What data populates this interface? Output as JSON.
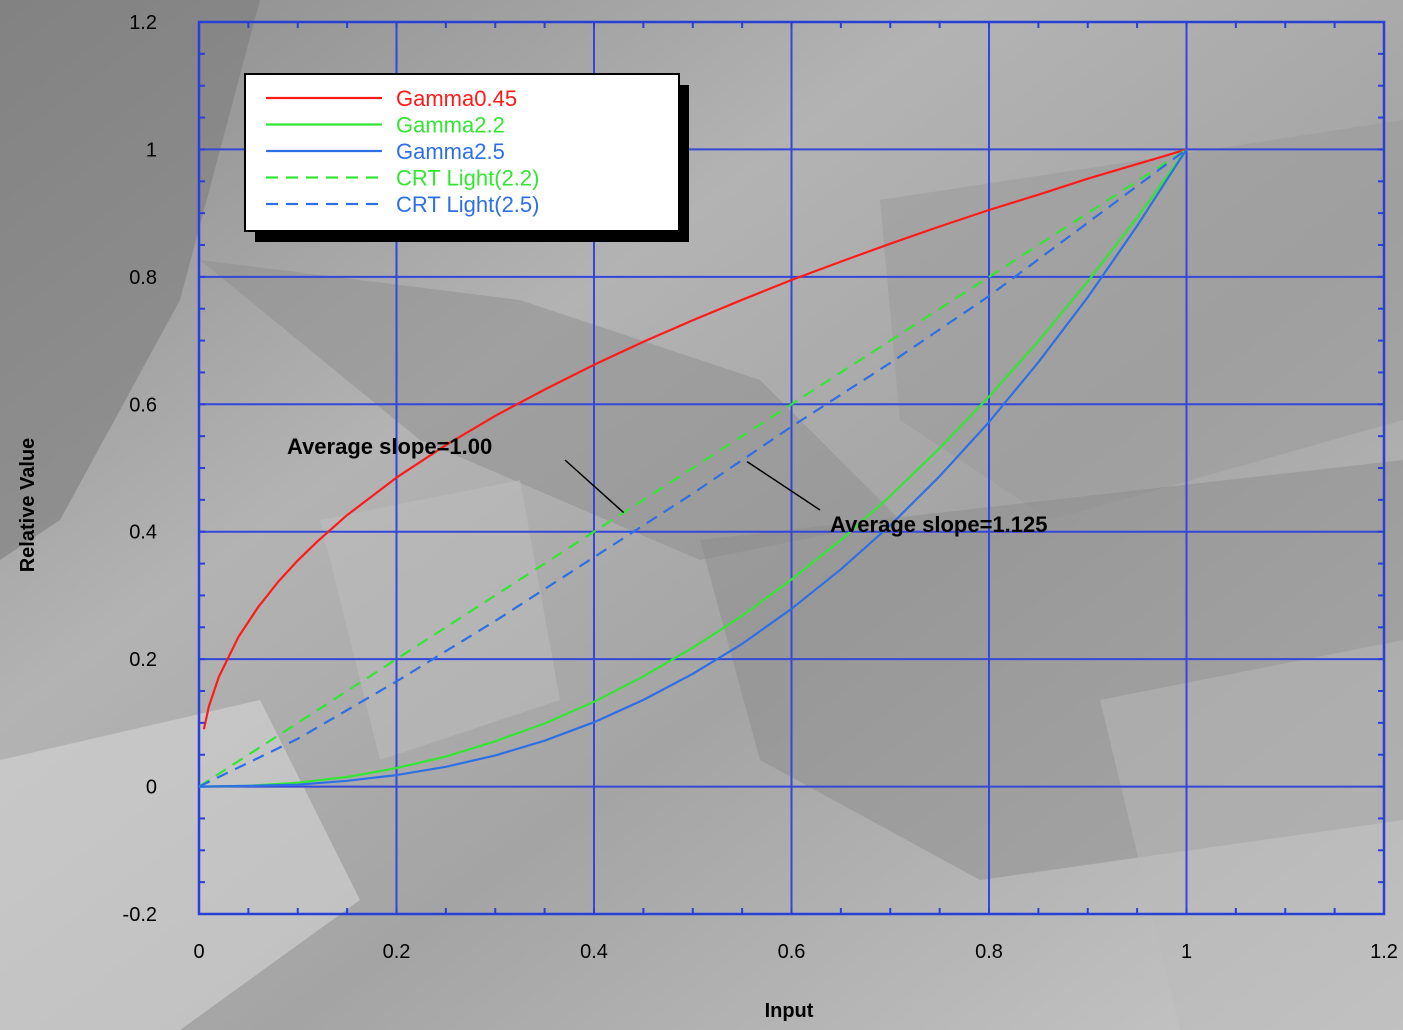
{
  "chart_data": {
    "type": "line",
    "xlabel": "Input",
    "ylabel": "Relative Value",
    "xlim": [
      0,
      1.2
    ],
    "ylim": [
      -0.2,
      1.2
    ],
    "xticks": [
      "0",
      "0.2",
      "0.4",
      "0.6",
      "0.8",
      "1",
      "1.2"
    ],
    "yticks": [
      "-0.2",
      "0",
      "0.2",
      "0.4",
      "0.6",
      "0.8",
      "1",
      "1.2"
    ],
    "grid": true,
    "legend_position": "top-left",
    "series": [
      {
        "name": "Gamma0.45",
        "color": "#ff1a1a",
        "dash": "solid",
        "x": [
          0.005,
          0.01,
          0.02,
          0.04,
          0.06,
          0.08,
          0.1,
          0.12,
          0.15,
          0.2,
          0.25,
          0.3,
          0.35,
          0.4,
          0.45,
          0.5,
          0.55,
          0.6,
          0.65,
          0.7,
          0.75,
          0.8,
          0.85,
          0.9,
          0.95,
          1.0
        ],
        "y": [
          0.09,
          0.126,
          0.172,
          0.235,
          0.282,
          0.321,
          0.355,
          0.385,
          0.426,
          0.485,
          0.536,
          0.582,
          0.623,
          0.662,
          0.698,
          0.732,
          0.764,
          0.795,
          0.824,
          0.852,
          0.879,
          0.905,
          0.929,
          0.954,
          0.977,
          1.0
        ]
      },
      {
        "name": "Gamma2.2",
        "color": "#33e633",
        "dash": "solid",
        "x": [
          0.0,
          0.05,
          0.1,
          0.15,
          0.2,
          0.25,
          0.3,
          0.35,
          0.4,
          0.45,
          0.5,
          0.55,
          0.6,
          0.65,
          0.7,
          0.75,
          0.8,
          0.85,
          0.9,
          0.95,
          1.0
        ],
        "y": [
          0.0,
          0.001,
          0.006,
          0.015,
          0.029,
          0.047,
          0.071,
          0.099,
          0.133,
          0.173,
          0.218,
          0.268,
          0.325,
          0.387,
          0.456,
          0.531,
          0.612,
          0.699,
          0.793,
          0.893,
          1.0
        ]
      },
      {
        "name": "Gamma2.5",
        "color": "#2f6fe6",
        "dash": "solid",
        "x": [
          0.0,
          0.05,
          0.1,
          0.15,
          0.2,
          0.25,
          0.3,
          0.35,
          0.4,
          0.45,
          0.5,
          0.55,
          0.6,
          0.65,
          0.7,
          0.75,
          0.8,
          0.85,
          0.9,
          0.95,
          1.0
        ],
        "y": [
          0.0,
          0.001,
          0.003,
          0.009,
          0.018,
          0.031,
          0.049,
          0.072,
          0.101,
          0.136,
          0.177,
          0.224,
          0.279,
          0.341,
          0.41,
          0.487,
          0.572,
          0.666,
          0.768,
          0.88,
          1.0
        ]
      },
      {
        "name": "CRT Light(2.2)",
        "color": "#33e633",
        "dash": "dashed",
        "x": [
          0.0,
          0.1,
          0.2,
          0.3,
          0.4,
          0.5,
          0.6,
          0.7,
          0.8,
          0.9,
          1.0
        ],
        "y": [
          0.0,
          0.1,
          0.2,
          0.3,
          0.4,
          0.5,
          0.6,
          0.7,
          0.8,
          0.9,
          1.0
        ]
      },
      {
        "name": "CRT Light(2.5)",
        "color": "#2f6fe6",
        "dash": "dashed",
        "x": [
          0.0,
          0.1,
          0.2,
          0.3,
          0.4,
          0.5,
          0.6,
          0.7,
          0.8,
          0.9,
          1.0
        ],
        "y": [
          0.0,
          0.075,
          0.165,
          0.26,
          0.36,
          0.46,
          0.565,
          0.665,
          0.77,
          0.885,
          1.0
        ]
      }
    ],
    "annotations": [
      {
        "text": "Average slope=1.00",
        "arrow_to": [
          0.43,
          0.43
        ]
      },
      {
        "text": "Average slope=1.125",
        "arrow_to": [
          0.555,
          0.51
        ]
      }
    ]
  }
}
